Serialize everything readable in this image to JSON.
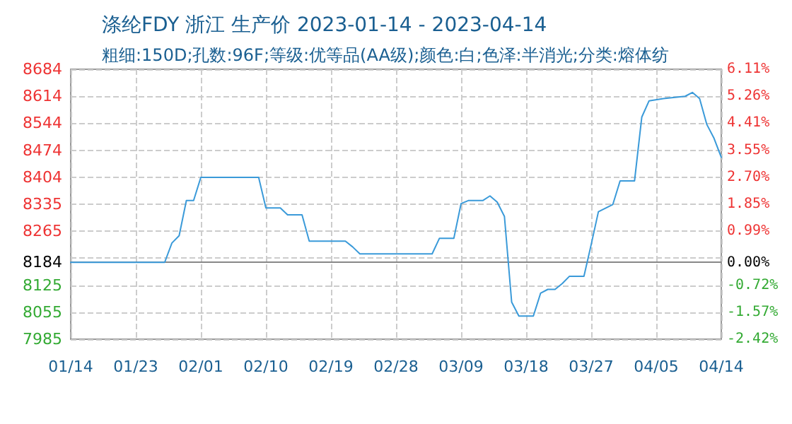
{
  "chart_data": {
    "type": "line",
    "title": "涤纶FDY 浙江 生产价 2023-01-14 - 2023-04-14",
    "subtitle": "粗细:150D;孔数:96F;等级:优等品(AA级);颜色:白;色泽:半消光;分类:熔体纺",
    "x": [
      "2023-01-14",
      "2023-01-27",
      "2023-01-28",
      "2023-01-29",
      "2023-01-30",
      "2023-01-31",
      "2023-02-01",
      "2023-02-09",
      "2023-02-10",
      "2023-02-12",
      "2023-02-13",
      "2023-02-15",
      "2023-02-16",
      "2023-02-21",
      "2023-02-22",
      "2023-02-23",
      "2023-03-05",
      "2023-03-06",
      "2023-03-08",
      "2023-03-09",
      "2023-03-10",
      "2023-03-12",
      "2023-03-13",
      "2023-03-14",
      "2023-03-15",
      "2023-03-16",
      "2023-03-17",
      "2023-03-19",
      "2023-03-20",
      "2023-03-21",
      "2023-03-22",
      "2023-03-23",
      "2023-03-24",
      "2023-03-26",
      "2023-03-27",
      "2023-03-28",
      "2023-03-30",
      "2023-03-31",
      "2023-04-02",
      "2023-04-03",
      "2023-04-04",
      "2023-04-06",
      "2023-04-09",
      "2023-04-10",
      "2023-04-11",
      "2023-04-12",
      "2023-04-13",
      "2023-04-14"
    ],
    "series": [
      {
        "color": "#3a9ad9",
        "values": [
          8184,
          8184,
          8234,
          8253,
          8344,
          8344,
          8404,
          8404,
          8325,
          8325,
          8307,
          8307,
          8239,
          8239,
          8224,
          8206,
          8206,
          8246,
          8246,
          8336,
          8344,
          8344,
          8356,
          8340,
          8303,
          8081,
          8045,
          8045,
          8104,
          8114,
          8114,
          8129,
          8148,
          8148,
          8230,
          8315,
          8334,
          8395,
          8395,
          8560,
          8602,
          8608,
          8614,
          8624,
          8608,
          8541,
          8505,
          8456
        ]
      }
    ],
    "xlim": [
      "2023-01-14",
      "2023-04-14"
    ],
    "xticks": [
      {
        "value": "2023-01-14",
        "label": "01/14"
      },
      {
        "value": "2023-01-23",
        "label": "01/23"
      },
      {
        "value": "2023-02-01",
        "label": "02/01"
      },
      {
        "value": "2023-02-10",
        "label": "02/10"
      },
      {
        "value": "2023-02-19",
        "label": "02/19"
      },
      {
        "value": "2023-02-28",
        "label": "02/28"
      },
      {
        "value": "2023-03-09",
        "label": "03/09"
      },
      {
        "value": "2023-03-18",
        "label": "03/18"
      },
      {
        "value": "2023-03-27",
        "label": "03/27"
      },
      {
        "value": "2023-04-05",
        "label": "04/05"
      },
      {
        "value": "2023-04-14",
        "label": "04/14"
      }
    ],
    "ylim": [
      7985,
      8684
    ],
    "yticks": [
      7985,
      {
        "value": 8054.9,
        "label": "8055"
      },
      {
        "value": 8124.8,
        "label": "8125"
      },
      8184,
      {
        "value": 8194.7,
        "label": null
      },
      {
        "value": 8264.6,
        "label": "8265"
      },
      {
        "value": 8334.5,
        "label": "8335"
      },
      {
        "value": 8404.4,
        "label": "8404"
      },
      {
        "value": 8474.3,
        "label": "8474"
      },
      {
        "value": 8544.2,
        "label": "8544"
      },
      {
        "value": 8614.1,
        "label": "8614"
      },
      8684
    ],
    "y2lim": [
      -2.42,
      6.11
    ],
    "y2ticks": [
      {
        "value": -2.42,
        "label": "-2.42%"
      },
      {
        "value": -1.57,
        "label": "-1.57%"
      },
      {
        "value": -0.72,
        "label": "-0.72%"
      },
      {
        "value": 0,
        "label": "0.00%"
      },
      {
        "value": 0.99,
        "label": "0.99%"
      },
      {
        "value": 1.85,
        "label": "1.85%"
      },
      {
        "value": 2.7,
        "label": "2.70%"
      },
      {
        "value": 3.55,
        "label": "3.55%"
      },
      {
        "value": 4.41,
        "label": "4.41%"
      },
      {
        "value": 5.26,
        "label": "5.26%"
      },
      {
        "value": 6.11,
        "label": "6.11%"
      }
    ],
    "ref_lines": [
      {
        "axis": "y",
        "value": 8184,
        "color": "#888888",
        "line_style": "solid"
      }
    ],
    "grid": true,
    "marker": "none",
    "line_style": "solid"
  }
}
